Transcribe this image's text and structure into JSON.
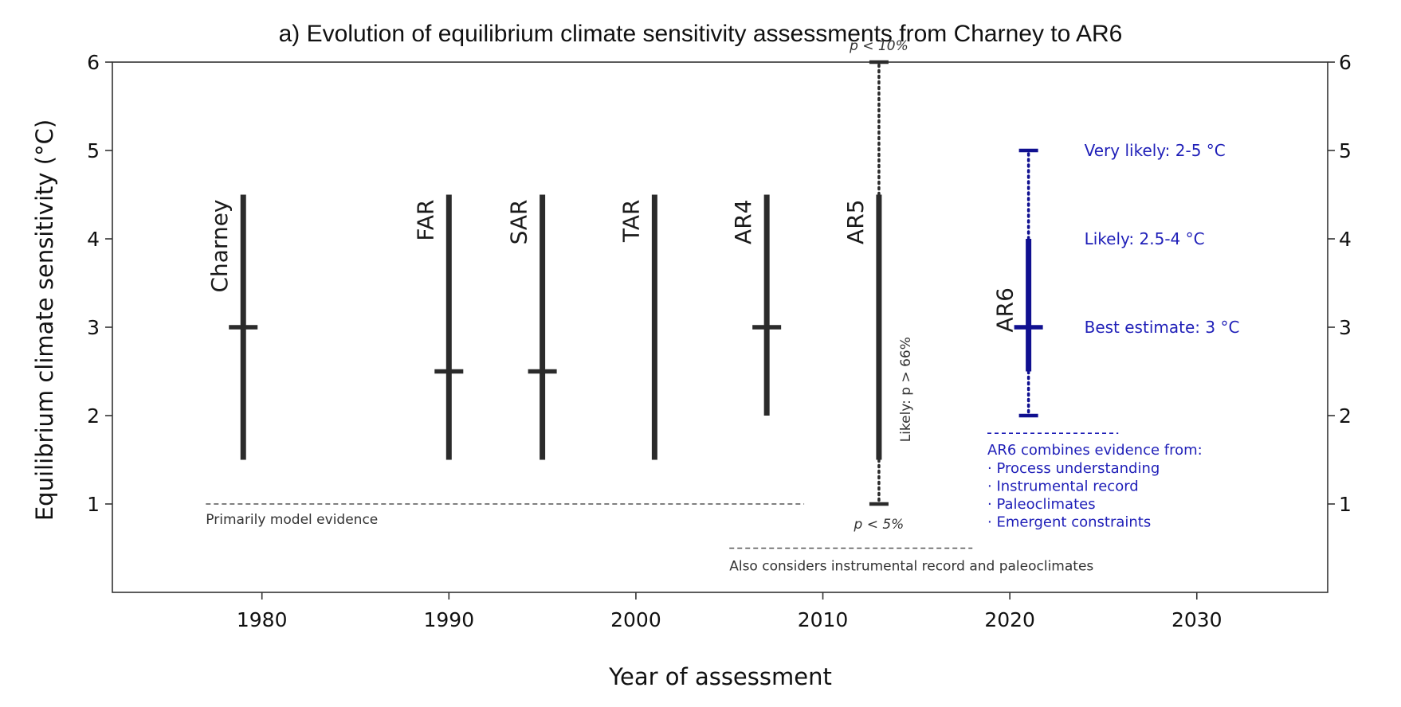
{
  "chart_data": {
    "type": "range",
    "title": "a) Evolution of equilibrium climate sensitivity assessments from Charney to AR6",
    "xlabel": "Year of assessment",
    "ylabel": "Equilibrium climate sensitivity (°C)",
    "xlim": [
      1972,
      2037
    ],
    "ylim": [
      0,
      6
    ],
    "xticks": [
      "1980",
      "1990",
      "2000",
      "2010",
      "2020",
      "2030"
    ],
    "yticks": [
      "1",
      "2",
      "3",
      "4",
      "5",
      "6"
    ],
    "assessments": [
      {
        "name": "Charney",
        "year": 1979,
        "low": 1.5,
        "high": 4.5,
        "best": 3
      },
      {
        "name": "FAR",
        "year": 1990,
        "low": 1.5,
        "high": 4.5,
        "best": 2.5
      },
      {
        "name": "SAR",
        "year": 1995,
        "low": 1.5,
        "high": 4.5,
        "best": 2.5
      },
      {
        "name": "TAR",
        "year": 2001,
        "low": 1.5,
        "high": 4.5,
        "best": null
      },
      {
        "name": "AR4",
        "year": 2007,
        "low": 2,
        "high": 4.5,
        "best": 3
      },
      {
        "name": "AR5",
        "year": 2013,
        "low": 1.5,
        "high": 4.5,
        "best": null,
        "tail_low": 1,
        "tail_high": 6
      },
      {
        "name": "AR6",
        "year": 2021,
        "low": 2.5,
        "high": 4,
        "best": 3,
        "very_likely_low": 2,
        "very_likely_high": 5
      }
    ],
    "annotations": {
      "p_high": "p < 10%",
      "p_low": "p < 5%",
      "likely_vertical": "Likely: p > 66%",
      "very_likely": "Very likely: 2-5 °C",
      "likely": "Likely: 2.5-4 °C",
      "best_estimate": "Best estimate: 3 °C",
      "model_evidence": "Primarily model evidence",
      "also_considers": "Also considers instrumental record and paleoclimates",
      "ar6_combines_title": "AR6 combines evidence from:",
      "ar6_combines_items": [
        "· Process understanding",
        "· Instrumental record",
        "· Paleoclimates",
        "· Emergent constraints"
      ]
    },
    "colors": {
      "main": "#2b2b2b",
      "ar6": "#101090",
      "ar6_text": "#1f1fb8"
    }
  }
}
